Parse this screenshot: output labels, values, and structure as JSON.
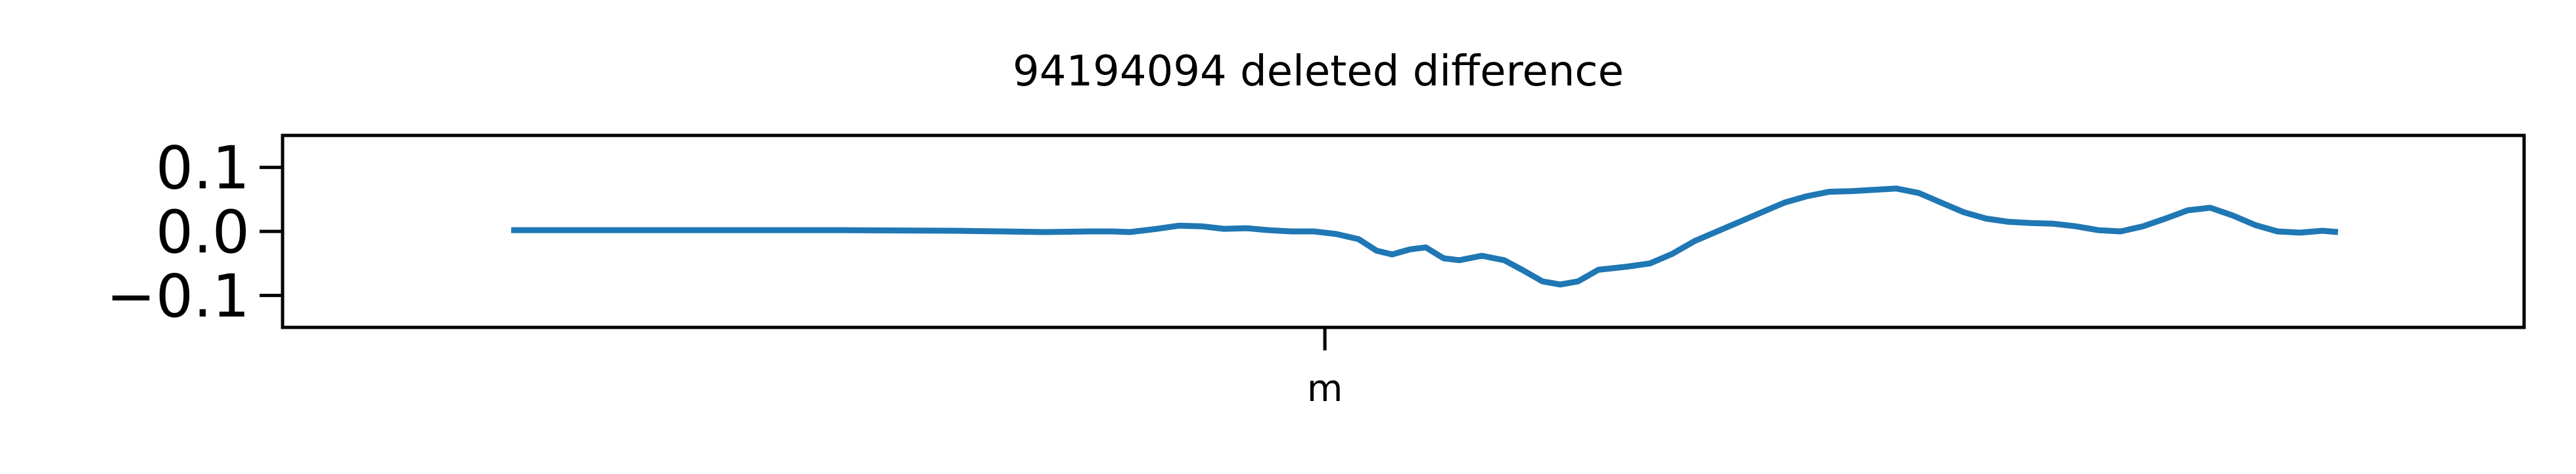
{
  "chart_data": {
    "type": "line",
    "title": "94194094 deleted difference",
    "xlabel": "",
    "ylabel": "",
    "ylim": [
      -0.15,
      0.15
    ],
    "yticks": [
      {
        "value": 0.1,
        "label": "0.1"
      },
      {
        "value": 0.0,
        "label": "0.0"
      },
      {
        "value": -0.1,
        "label": "−0.1"
      }
    ],
    "xticks": [
      {
        "value": 0.465,
        "label": "m"
      }
    ],
    "xlim": [
      0,
      1
    ],
    "grid": false,
    "legend": "none",
    "series": [
      {
        "color": "#1f77b4",
        "points": [
          [
            0.102,
            0.002
          ],
          [
            0.15,
            0.002
          ],
          [
            0.2,
            0.002
          ],
          [
            0.25,
            0.002
          ],
          [
            0.3,
            0.001
          ],
          [
            0.32,
            0.0
          ],
          [
            0.34,
            -0.001
          ],
          [
            0.36,
            0.0
          ],
          [
            0.37,
            0.0
          ],
          [
            0.378,
            -0.001
          ],
          [
            0.39,
            0.004
          ],
          [
            0.4,
            0.009
          ],
          [
            0.41,
            0.008
          ],
          [
            0.42,
            0.004
          ],
          [
            0.43,
            0.005
          ],
          [
            0.44,
            0.002
          ],
          [
            0.45,
            0.0
          ],
          [
            0.46,
            0.0
          ],
          [
            0.47,
            -0.004
          ],
          [
            0.48,
            -0.012
          ],
          [
            0.488,
            -0.03
          ],
          [
            0.495,
            -0.036
          ],
          [
            0.503,
            -0.028
          ],
          [
            0.51,
            -0.025
          ],
          [
            0.518,
            -0.042
          ],
          [
            0.525,
            -0.045
          ],
          [
            0.535,
            -0.038
          ],
          [
            0.545,
            -0.045
          ],
          [
            0.553,
            -0.06
          ],
          [
            0.562,
            -0.078
          ],
          [
            0.57,
            -0.083
          ],
          [
            0.578,
            -0.078
          ],
          [
            0.587,
            -0.06
          ],
          [
            0.6,
            -0.055
          ],
          [
            0.61,
            -0.05
          ],
          [
            0.62,
            -0.035
          ],
          [
            0.63,
            -0.015
          ],
          [
            0.64,
            0.0
          ],
          [
            0.65,
            0.015
          ],
          [
            0.66,
            0.03
          ],
          [
            0.67,
            0.045
          ],
          [
            0.68,
            0.055
          ],
          [
            0.69,
            0.062
          ],
          [
            0.7,
            0.063
          ],
          [
            0.71,
            0.065
          ],
          [
            0.72,
            0.067
          ],
          [
            0.73,
            0.06
          ],
          [
            0.74,
            0.045
          ],
          [
            0.75,
            0.03
          ],
          [
            0.76,
            0.02
          ],
          [
            0.77,
            0.015
          ],
          [
            0.78,
            0.013
          ],
          [
            0.79,
            0.012
          ],
          [
            0.8,
            0.008
          ],
          [
            0.81,
            0.002
          ],
          [
            0.82,
            0.0
          ],
          [
            0.83,
            0.008
          ],
          [
            0.84,
            0.02
          ],
          [
            0.85,
            0.033
          ],
          [
            0.86,
            0.037
          ],
          [
            0.87,
            0.025
          ],
          [
            0.88,
            0.01
          ],
          [
            0.89,
            0.0
          ],
          [
            0.9,
            -0.002
          ],
          [
            0.91,
            0.001
          ],
          [
            0.917,
            -0.001
          ]
        ]
      }
    ]
  }
}
